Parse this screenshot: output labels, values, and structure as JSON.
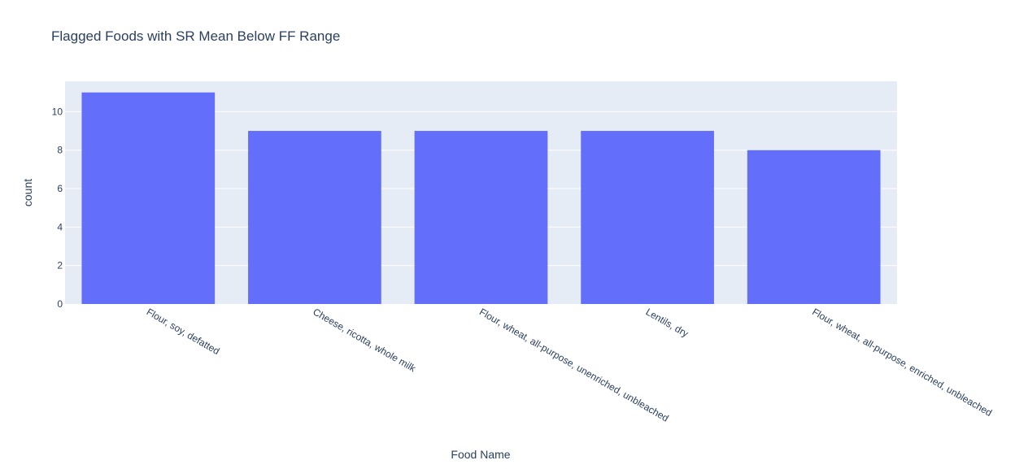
{
  "chart_data": {
    "type": "bar",
    "title": "Flagged Foods with SR Mean Below FF Range",
    "xlabel": "Food Name",
    "ylabel": "count",
    "categories": [
      "Flour, soy, defatted",
      "Cheese, ricotta, whole milk",
      "Flour, wheat, all-purpose, unenriched, unbleached",
      "Lentils, dry",
      "Flour, wheat, all-purpose, enriched, unbleached"
    ],
    "values": [
      11,
      9,
      9,
      9,
      8
    ],
    "ylim": [
      0,
      11.58
    ],
    "yticks": [
      0,
      2,
      4,
      6,
      8,
      10
    ],
    "grid": true,
    "colors": {
      "bar": "#636efa",
      "plot_bg": "#e5ecf6",
      "grid": "#ffffff",
      "text": "#2a3f5f"
    }
  }
}
